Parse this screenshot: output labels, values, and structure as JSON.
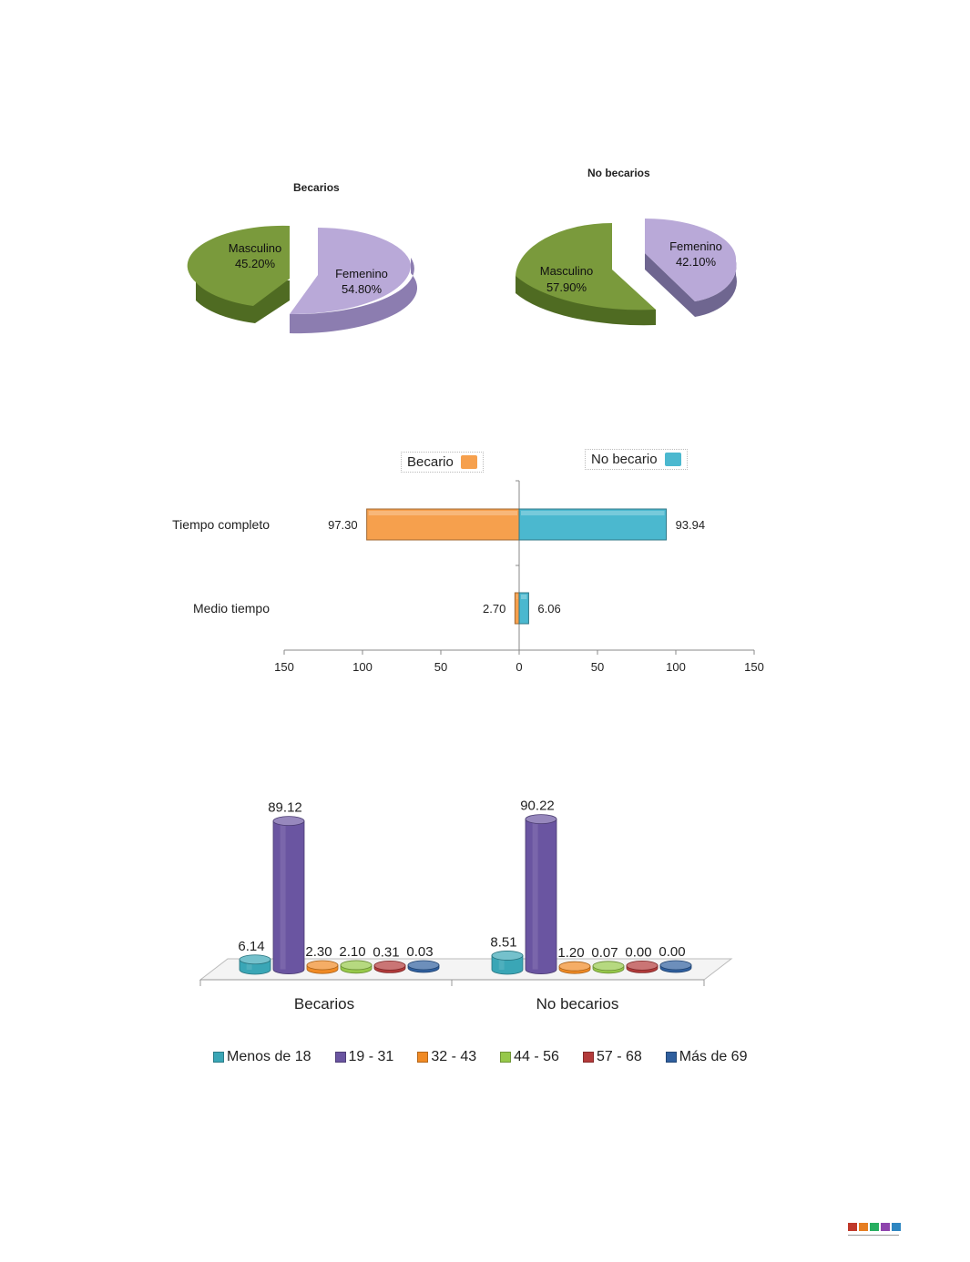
{
  "chart_data": [
    {
      "type": "pie",
      "title": "Becarios",
      "categories": [
        "Masculino",
        "Femenino"
      ],
      "values": [
        45.2,
        54.8
      ],
      "labels": [
        "45.20%",
        "54.80%"
      ],
      "colors": [
        "#7a9a3c",
        "#b9a9d8"
      ]
    },
    {
      "type": "pie",
      "title": "No becarios",
      "categories": [
        "Masculino",
        "Femenino"
      ],
      "values": [
        57.9,
        42.1
      ],
      "labels": [
        "57.90%",
        "42.10%"
      ],
      "colors": [
        "#7a9a3c",
        "#b9a9d8"
      ]
    },
    {
      "type": "bar",
      "orientation": "horizontal-diverging",
      "categories": [
        "Tiempo completo",
        "Medio tiempo"
      ],
      "series": [
        {
          "name": "Becario",
          "values": [
            97.3,
            2.7
          ],
          "labels": [
            "97.30",
            "2.70"
          ],
          "color": "#f6a04d"
        },
        {
          "name": "No becario",
          "values": [
            93.94,
            6.06
          ],
          "labels": [
            "93.94",
            "6.06"
          ],
          "color": "#4bb8cf"
        }
      ],
      "xlim": [
        -150,
        150
      ],
      "xticks": [
        "150",
        "100",
        "50",
        "0",
        "50",
        "100",
        "150"
      ]
    },
    {
      "type": "bar",
      "style": "3d-cylinder",
      "categories": [
        "Becarios",
        "No becarios"
      ],
      "series": [
        {
          "name": "Menos de 18",
          "values": [
            6.14,
            8.51
          ],
          "labels": [
            "6.14",
            "8.51"
          ],
          "color": "#3aa6b6"
        },
        {
          "name": "19 - 31",
          "values": [
            89.12,
            90.22
          ],
          "labels": [
            "89.12",
            "90.22"
          ],
          "color": "#6a55a1"
        },
        {
          "name": "32 - 43",
          "values": [
            2.3,
            1.2
          ],
          "labels": [
            "2.30",
            "1.20"
          ],
          "color": "#f08a24"
        },
        {
          "name": "44 - 56",
          "values": [
            2.1,
            0.07
          ],
          "labels": [
            "2.10",
            "0.07"
          ],
          "color": "#96c84a"
        },
        {
          "name": "57 - 68",
          "values": [
            0.31,
            0.0
          ],
          "labels": [
            "0.31",
            "0.00"
          ],
          "color": "#b33a3a"
        },
        {
          "name": "Más de 69",
          "values": [
            0.03,
            0.0
          ],
          "labels": [
            "0.03",
            "0.00"
          ],
          "color": "#2f5f9e"
        }
      ]
    }
  ],
  "footer_colors": [
    "#c0392b",
    "#e67e22",
    "#27ae60",
    "#8e44ad",
    "#2e86c1"
  ]
}
